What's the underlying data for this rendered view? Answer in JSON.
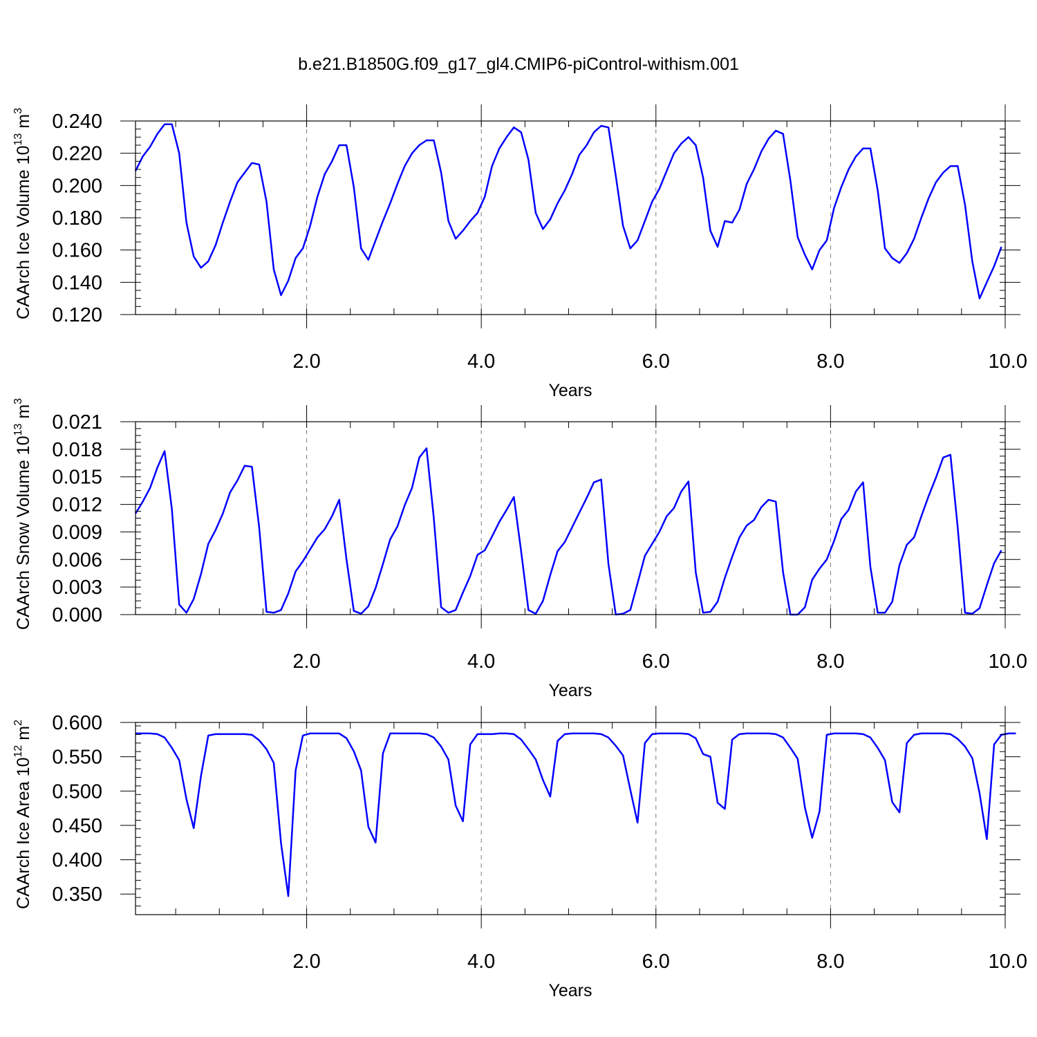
{
  "title": "b.e21.B1850G.f09_g17_gl4.CMIP6-piControl-withism.001",
  "colors": {
    "line": "#0000ff",
    "axes": "#000000",
    "grid": "#777777"
  },
  "chart_data": [
    {
      "type": "line",
      "xlabel": "Years",
      "ylabel": {
        "text": "CAArch Ice Volume 10",
        "exp1": "13",
        "unit": " m",
        "exp2": "3"
      },
      "xlim": [
        0.04,
        10.0
      ],
      "ylim": [
        0.12,
        0.24
      ],
      "x_ticks": [
        2.0,
        4.0,
        6.0,
        8.0,
        10.0
      ],
      "x_tick_labels": [
        "2.0",
        "4.0",
        "6.0",
        "8.0",
        "10.0"
      ],
      "y_ticks": [
        0.12,
        0.14,
        0.16,
        0.18,
        0.2,
        0.22,
        0.24
      ],
      "y_tick_labels": [
        "0.120",
        "0.140",
        "0.160",
        "0.180",
        "0.200",
        "0.220",
        "0.240"
      ],
      "y_minor_step": 0.005,
      "grid": "vertical-dashed",
      "x_start": 0.04,
      "x_step": 0.08333,
      "values": [
        0.209,
        0.218,
        0.224,
        0.232,
        0.238,
        0.238,
        0.22,
        0.177,
        0.156,
        0.149,
        0.153,
        0.163,
        0.177,
        0.19,
        0.202,
        0.208,
        0.214,
        0.213,
        0.19,
        0.148,
        0.132,
        0.141,
        0.155,
        0.161,
        0.175,
        0.193,
        0.207,
        0.215,
        0.225,
        0.225,
        0.199,
        0.161,
        0.154,
        0.166,
        0.178,
        0.189,
        0.201,
        0.212,
        0.22,
        0.225,
        0.228,
        0.228,
        0.208,
        0.178,
        0.167,
        0.172,
        0.178,
        0.183,
        0.193,
        0.212,
        0.223,
        0.23,
        0.236,
        0.233,
        0.216,
        0.183,
        0.173,
        0.179,
        0.189,
        0.197,
        0.207,
        0.219,
        0.225,
        0.233,
        0.237,
        0.236,
        0.206,
        0.175,
        0.161,
        0.166,
        0.178,
        0.19,
        0.198,
        0.209,
        0.22,
        0.226,
        0.23,
        0.225,
        0.205,
        0.172,
        0.162,
        0.178,
        0.177,
        0.185,
        0.201,
        0.21,
        0.221,
        0.229,
        0.234,
        0.232,
        0.203,
        0.168,
        0.157,
        0.148,
        0.16,
        0.166,
        0.186,
        0.199,
        0.21,
        0.218,
        0.223,
        0.223,
        0.197,
        0.161,
        0.155,
        0.152,
        0.158,
        0.167,
        0.18,
        0.192,
        0.202,
        0.208,
        0.212,
        0.212,
        0.188,
        0.153,
        0.13,
        0.14,
        0.15,
        0.162
      ]
    },
    {
      "type": "line",
      "xlabel": "Years",
      "ylabel": {
        "text": "CAArch Snow Volume 10",
        "exp1": "13",
        "unit": " m",
        "exp2": "3"
      },
      "xlim": [
        0.04,
        10.0
      ],
      "ylim": [
        0.0,
        0.021
      ],
      "x_ticks": [
        2.0,
        4.0,
        6.0,
        8.0,
        10.0
      ],
      "x_tick_labels": [
        "2.0",
        "4.0",
        "6.0",
        "8.0",
        "10.0"
      ],
      "y_ticks": [
        0.0,
        0.003,
        0.006,
        0.009,
        0.012,
        0.015,
        0.018,
        0.021
      ],
      "y_tick_labels": [
        "0.000",
        "0.003",
        "0.006",
        "0.009",
        "0.012",
        "0.015",
        "0.018",
        "0.021"
      ],
      "y_minor_step": 0.00075,
      "grid": "vertical-dashed",
      "x_start": 0.04,
      "x_step": 0.08333,
      "values": [
        0.011,
        0.0123,
        0.0138,
        0.016,
        0.0178,
        0.0115,
        0.0011,
        0.0002,
        0.0017,
        0.0044,
        0.0077,
        0.0092,
        0.011,
        0.0133,
        0.0146,
        0.0162,
        0.0161,
        0.0095,
        0.0003,
        0.0002,
        0.0005,
        0.0023,
        0.0047,
        0.0058,
        0.0071,
        0.0084,
        0.0093,
        0.0107,
        0.0125,
        0.006,
        0.0004,
        0.0001,
        0.0009,
        0.0029,
        0.0055,
        0.0082,
        0.0096,
        0.0119,
        0.0138,
        0.0171,
        0.0181,
        0.0105,
        0.0008,
        0.0002,
        0.0005,
        0.0024,
        0.0042,
        0.0065,
        0.007,
        0.0085,
        0.0101,
        0.0114,
        0.0128,
        0.0069,
        0.0005,
        0.0001,
        0.0015,
        0.0043,
        0.0069,
        0.0079,
        0.0095,
        0.0111,
        0.0127,
        0.0144,
        0.0147,
        0.0055,
        0.0,
        0.0001,
        0.0005,
        0.0034,
        0.0064,
        0.0077,
        0.009,
        0.0107,
        0.0116,
        0.0134,
        0.0145,
        0.0046,
        0.0002,
        0.0003,
        0.0014,
        0.004,
        0.0063,
        0.0084,
        0.0097,
        0.0103,
        0.0117,
        0.0125,
        0.0123,
        0.0046,
        0.0,
        0.0,
        0.0008,
        0.0038,
        0.005,
        0.006,
        0.008,
        0.0104,
        0.0114,
        0.0134,
        0.0144,
        0.0052,
        0.0002,
        0.0002,
        0.0014,
        0.0054,
        0.0076,
        0.0084,
        0.0107,
        0.0129,
        0.0149,
        0.0171,
        0.0174,
        0.0095,
        0.0002,
        0.0001,
        0.0007,
        0.0032,
        0.0056,
        0.007
      ]
    },
    {
      "type": "line",
      "xlabel": "Years",
      "ylabel": {
        "text": "CAArch Ice Area 10",
        "exp1": "12",
        "unit": " m",
        "exp2": "2"
      },
      "xlim": [
        0.04,
        10.0
      ],
      "ylim": [
        0.32,
        0.6
      ],
      "x_ticks": [
        2.0,
        4.0,
        6.0,
        8.0,
        10.0
      ],
      "x_tick_labels": [
        "2.0",
        "4.0",
        "6.0",
        "8.0",
        "10.0"
      ],
      "y_ticks": [
        0.35,
        0.4,
        0.45,
        0.5,
        0.55,
        0.6
      ],
      "y_tick_labels": [
        "0.350",
        "0.400",
        "0.450",
        "0.500",
        "0.550",
        "0.600"
      ],
      "y_minor_step": 0.0125,
      "grid": "vertical-dashed",
      "x_start": 0.04,
      "x_step": 0.08333,
      "values": [
        0.584,
        0.584,
        0.584,
        0.583,
        0.578,
        0.563,
        0.545,
        0.488,
        0.446,
        0.522,
        0.581,
        0.583,
        0.583,
        0.583,
        0.583,
        0.583,
        0.582,
        0.574,
        0.561,
        0.541,
        0.424,
        0.347,
        0.53,
        0.581,
        0.584,
        0.584,
        0.584,
        0.584,
        0.584,
        0.577,
        0.558,
        0.53,
        0.448,
        0.425,
        0.555,
        0.584,
        0.584,
        0.584,
        0.584,
        0.584,
        0.583,
        0.578,
        0.565,
        0.546,
        0.479,
        0.456,
        0.568,
        0.583,
        0.583,
        0.583,
        0.584,
        0.584,
        0.583,
        0.575,
        0.561,
        0.546,
        0.516,
        0.492,
        0.573,
        0.583,
        0.584,
        0.584,
        0.584,
        0.584,
        0.583,
        0.578,
        0.566,
        0.552,
        0.502,
        0.454,
        0.57,
        0.583,
        0.584,
        0.584,
        0.584,
        0.584,
        0.583,
        0.577,
        0.554,
        0.55,
        0.483,
        0.474,
        0.575,
        0.583,
        0.584,
        0.584,
        0.584,
        0.584,
        0.583,
        0.578,
        0.563,
        0.547,
        0.476,
        0.432,
        0.47,
        0.582,
        0.584,
        0.584,
        0.584,
        0.584,
        0.583,
        0.578,
        0.563,
        0.545,
        0.484,
        0.469,
        0.57,
        0.582,
        0.584,
        0.584,
        0.584,
        0.584,
        0.583,
        0.576,
        0.565,
        0.548,
        0.497,
        0.43,
        0.568,
        0.582,
        0.584,
        0.584
      ]
    }
  ]
}
